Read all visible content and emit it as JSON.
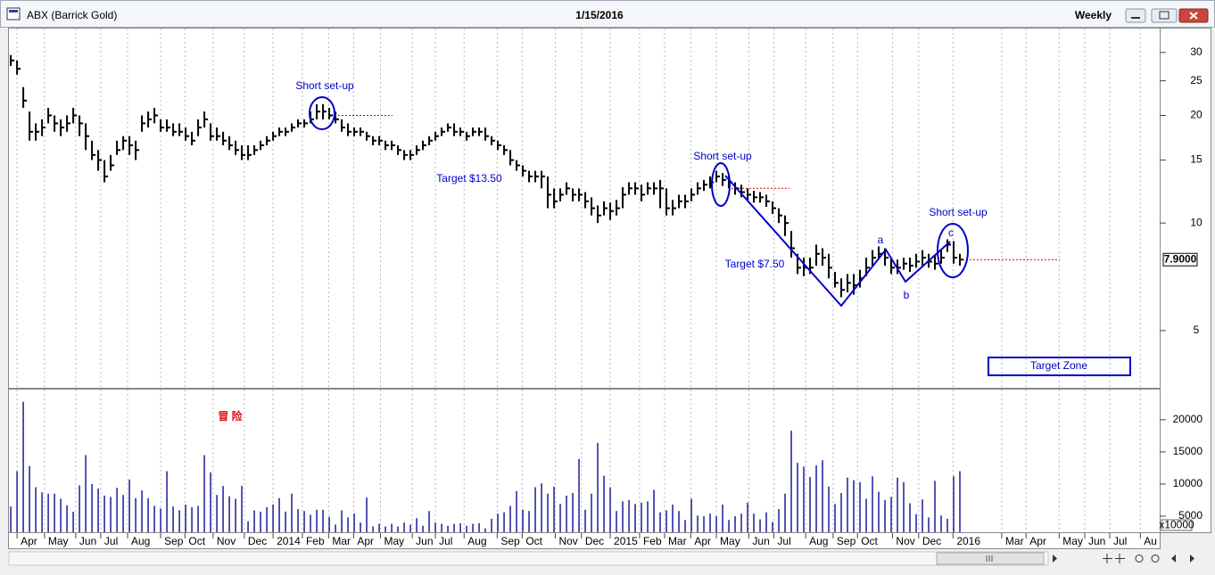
{
  "chart_data": [
    {
      "type": "ohlc",
      "title": "ABX (Barrick Gold)",
      "subtitle": "1/15/2016",
      "period": "Weekly",
      "log_scale": true,
      "ylim": [
        3.46,
        35
      ],
      "yticks": [
        5,
        10,
        15,
        20,
        25,
        30
      ],
      "xlim": [
        -0.3,
        184
      ],
      "color": "#000000",
      "high": [
        29.5,
        28.5,
        24,
        20.5,
        19,
        19.5,
        21,
        20,
        19.5,
        20,
        21,
        20,
        19,
        17,
        16,
        15,
        15.5,
        17,
        17.5,
        17.5,
        17,
        20,
        20.5,
        21,
        19.5,
        19.5,
        19,
        19,
        18.5,
        18,
        19.5,
        20.5,
        19,
        18.5,
        18,
        17.5,
        17,
        16.5,
        16.5,
        16.5,
        17,
        17.5,
        18,
        18.5,
        18.5,
        19,
        19.5,
        19.5,
        20.5,
        21.5,
        21.5,
        21,
        20.5,
        19.5,
        19,
        18.5,
        18.5,
        18,
        17.5,
        17.5,
        17,
        17,
        16.5,
        16,
        16,
        16.5,
        17,
        17.5,
        18,
        18.5,
        19,
        19,
        18.5,
        18,
        18.5,
        18.5,
        18.5,
        17.5,
        17,
        16.5,
        16,
        15,
        14.5,
        14,
        14,
        14,
        13.5,
        12.5,
        12.5,
        13,
        12.5,
        12.5,
        12.2,
        11.8,
        11.2,
        11.5,
        11.4,
        11.6,
        12.6,
        13,
        13,
        12.8,
        13,
        13,
        13.2,
        12.5,
        11.6,
        12,
        12,
        12.5,
        13,
        13.2,
        13.5,
        14,
        13.8,
        13.6,
        13,
        12.8,
        12.5,
        12.3,
        12.2,
        12,
        11.5,
        11,
        10.5,
        9.5,
        8.2,
        8,
        8,
        8.7,
        8.5,
        8.2,
        7.3,
        7,
        7.2,
        7.2,
        7.4,
        8,
        8.4,
        8.6,
        8.5,
        8,
        7.9,
        8,
        8,
        8.2,
        8.4,
        8.2,
        8.1,
        8.4,
        9.0,
        8.9,
        8.2
      ],
      "low": [
        27.5,
        26,
        21,
        17,
        17,
        17.5,
        19,
        18,
        17.5,
        18,
        19,
        17.5,
        16,
        15,
        14,
        13,
        14,
        15.5,
        16,
        15.5,
        15,
        18,
        18.5,
        19,
        18,
        18,
        17.5,
        17.5,
        17,
        16.5,
        17.5,
        18.5,
        17,
        17,
        16.5,
        16,
        15.5,
        15,
        15,
        15.5,
        16,
        16.5,
        17,
        17.5,
        17.5,
        18,
        18.5,
        18.5,
        19,
        19.5,
        19.5,
        19.5,
        19,
        18,
        17.5,
        17.5,
        17.5,
        17,
        16.5,
        16.5,
        16,
        16,
        15.5,
        15,
        15,
        15.5,
        16,
        16.5,
        17,
        17.5,
        18,
        17.5,
        17.5,
        17,
        17.5,
        17.5,
        17,
        16.5,
        16,
        15.5,
        14.5,
        14,
        13.5,
        13,
        13,
        12.5,
        11,
        11,
        11.5,
        12,
        11.5,
        11.5,
        11,
        10.5,
        10,
        10.5,
        10.2,
        10.5,
        11,
        12,
        12,
        11.5,
        12,
        12,
        11,
        10.5,
        10.5,
        11,
        11,
        11.5,
        12,
        12.3,
        12.5,
        13,
        12.7,
        12.5,
        12,
        11.8,
        11.6,
        11.4,
        11.4,
        11.1,
        10.6,
        10,
        9.2,
        8,
        7.2,
        7.1,
        7.2,
        7.6,
        7.6,
        7,
        6.6,
        6.2,
        6.4,
        6.3,
        6.6,
        7.1,
        7.6,
        7.9,
        7.6,
        7.2,
        7.2,
        7.4,
        7.3,
        7.5,
        7.6,
        7.5,
        7.4,
        7.7,
        8.3,
        7.7,
        7.6
      ],
      "close": [
        28.5,
        27,
        22,
        18,
        18,
        18.5,
        20,
        19,
        18.5,
        19,
        20,
        19,
        17.5,
        15.5,
        15,
        13.5,
        14.5,
        16,
        17,
        16.5,
        16,
        19,
        19.5,
        20,
        18.5,
        18.5,
        18,
        18,
        17.5,
        17,
        18.5,
        19.5,
        17.5,
        17.5,
        17,
        16.5,
        16,
        15.5,
        15.5,
        16,
        16.5,
        17,
        17.5,
        18,
        18,
        18.5,
        19,
        19,
        19.5,
        20.5,
        20.5,
        20,
        19.5,
        18.5,
        18,
        18,
        18,
        17.5,
        17,
        17,
        16.5,
        16.5,
        16,
        15.5,
        15.5,
        16,
        16.5,
        17,
        17.5,
        18,
        18.5,
        18,
        18,
        17.5,
        18,
        18,
        17.5,
        17,
        16.5,
        16,
        15,
        14.5,
        14,
        13.5,
        13.5,
        13.5,
        12,
        11.5,
        12,
        12.5,
        12,
        12,
        11.5,
        11,
        10.5,
        11,
        10.8,
        11,
        12,
        12.5,
        12.5,
        12,
        12.5,
        12.5,
        12.5,
        11,
        11,
        11.5,
        11.5,
        12,
        12.5,
        12.8,
        13,
        13.5,
        13.2,
        13,
        12.5,
        12.2,
        12,
        11.8,
        11.8,
        11.5,
        11,
        10.5,
        10,
        8.5,
        7.5,
        7.5,
        7.5,
        8.2,
        8,
        7.5,
        6.8,
        6.5,
        6.8,
        6.7,
        7,
        7.5,
        8,
        8.2,
        8,
        7.5,
        7.5,
        7.7,
        7.6,
        7.8,
        8,
        7.8,
        7.7,
        8,
        8.7,
        8,
        7.9
      ],
      "last_price": {
        "value": 7.9,
        "label": "7.9000"
      },
      "levels": [
        20,
        12.5,
        7.9
      ],
      "level_color": "#cc0000",
      "annotations": [
        "Short set-up",
        "Short set-up",
        "Short set-up",
        "Target $13.50",
        "Target $7.50",
        "a",
        "b",
        "c",
        "Target Zone"
      ],
      "annotation_color": "#0000c8"
    },
    {
      "type": "bar",
      "watermark": "冒 险",
      "unit_label": "x10000",
      "color": "#1c1c9c",
      "ylim": [
        2500,
        24700
      ],
      "yticks": [
        5000,
        10000,
        15000,
        20000
      ],
      "xlim": [
        -0.3,
        184
      ],
      "grid": true,
      "values": [
        6500,
        12000,
        22800,
        12800,
        9500,
        8700,
        8500,
        8500,
        7700,
        6700,
        5700,
        9800,
        14500,
        10000,
        9300,
        8200,
        8000,
        9400,
        8300,
        10700,
        7800,
        9000,
        7800,
        6600,
        6200,
        12000,
        6500,
        5900,
        6800,
        6400,
        6600,
        14500,
        11800,
        8300,
        9700,
        8100,
        7700,
        9700,
        4200,
        5900,
        5700,
        6400,
        6800,
        7800,
        5700,
        8500,
        6100,
        5800,
        5200,
        6000,
        6000,
        4900,
        3700,
        5900,
        4800,
        5400,
        4000,
        7900,
        3400,
        3800,
        3400,
        3800,
        3400,
        4000,
        3700,
        4700,
        3500,
        5800,
        4000,
        3800,
        3500,
        3800,
        3900,
        3500,
        3800,
        3900,
        3100,
        4600,
        5400,
        5600,
        6600,
        8900,
        6000,
        5800,
        9500,
        10100,
        8500,
        9600,
        6900,
        8200,
        8600,
        13900,
        6000,
        8500,
        16400,
        11300,
        9500,
        5800,
        7300,
        7500,
        6900,
        7100,
        7300,
        9100,
        5600,
        5900,
        6800,
        5800,
        4400,
        7700,
        5100,
        5000,
        5400,
        5000,
        6800,
        4400,
        5000,
        5400,
        7100,
        5400,
        4500,
        5600,
        4100,
        6100,
        8500,
        18300,
        13300,
        12700,
        11100,
        12900,
        13700,
        9600,
        6900,
        8600,
        11000,
        10600,
        10300,
        7700,
        11200,
        8800,
        7500,
        8000,
        11000,
        10300,
        7000,
        5300,
        7600,
        4800,
        10500,
        5100,
        4600,
        11200,
        12000
      ],
      "xticks": [
        {
          "value": 1.0,
          "label": "Apr"
        },
        {
          "value": 5.4,
          "label": "May"
        },
        {
          "value": 10.4,
          "label": "Jun"
        },
        {
          "value": 14.4,
          "label": "Jul"
        },
        {
          "value": 18.7,
          "label": "Aug"
        },
        {
          "value": 24.0,
          "label": "Sep"
        },
        {
          "value": 27.9,
          "label": "Oct"
        },
        {
          "value": 32.4,
          "label": "Nov"
        },
        {
          "value": 37.4,
          "label": "Dec"
        },
        {
          "value": 42.0,
          "label": "2014"
        },
        {
          "value": 46.7,
          "label": "Feb"
        },
        {
          "value": 50.9,
          "label": "Mar"
        },
        {
          "value": 54.9,
          "label": "Apr"
        },
        {
          "value": 59.2,
          "label": "May"
        },
        {
          "value": 64.3,
          "label": "Jun"
        },
        {
          "value": 68.0,
          "label": "Jul"
        },
        {
          "value": 72.6,
          "label": "Aug"
        },
        {
          "value": 77.9,
          "label": "Sep"
        },
        {
          "value": 81.9,
          "label": "Oct"
        },
        {
          "value": 87.2,
          "label": "Nov"
        },
        {
          "value": 91.4,
          "label": "Dec"
        },
        {
          "value": 96.0,
          "label": "2015"
        },
        {
          "value": 100.7,
          "label": "Feb"
        },
        {
          "value": 104.7,
          "label": "Mar"
        },
        {
          "value": 108.9,
          "label": "Apr"
        },
        {
          "value": 113.0,
          "label": "May"
        },
        {
          "value": 118.2,
          "label": "Jun"
        },
        {
          "value": 122.2,
          "label": "Jul"
        },
        {
          "value": 127.3,
          "label": "Aug"
        },
        {
          "value": 131.7,
          "label": "Sep"
        },
        {
          "value": 135.6,
          "label": "Oct"
        },
        {
          "value": 141.2,
          "label": "Nov"
        },
        {
          "value": 145.4,
          "label": "Dec"
        },
        {
          "value": 150.9,
          "label": "2016"
        },
        {
          "value": 158.7,
          "label": "Mar"
        },
        {
          "value": 162.6,
          "label": "Apr"
        },
        {
          "value": 167.9,
          "label": "May"
        },
        {
          "value": 172.0,
          "label": "Jun"
        },
        {
          "value": 176.0,
          "label": "Jul"
        },
        {
          "value": 180.9,
          "label": "Au"
        }
      ]
    }
  ]
}
